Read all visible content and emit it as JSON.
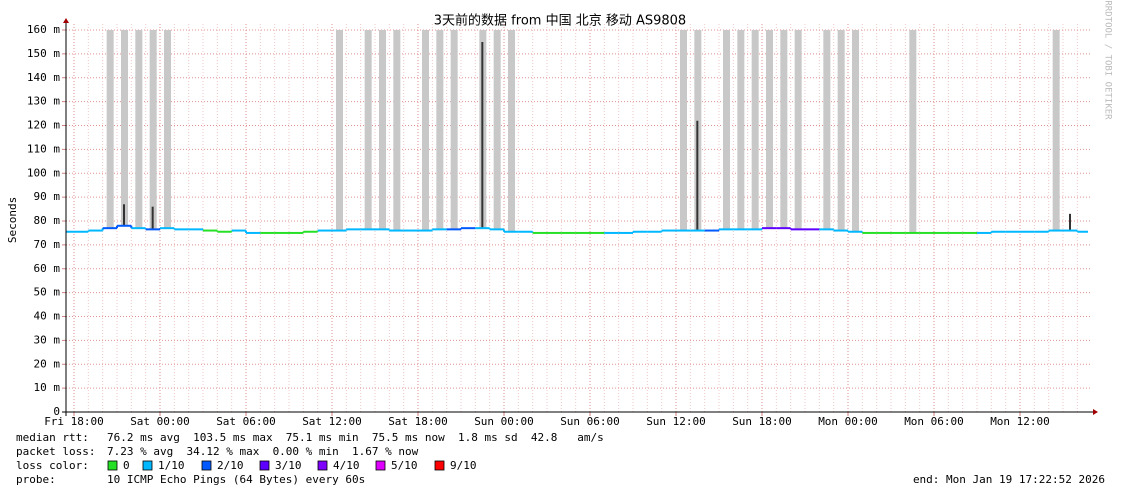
{
  "chart_data": {
    "type": "line",
    "title": "3天前的数据 from 中国 北京 移动 AS9808",
    "y_label": "Seconds",
    "watermark": "RRDTOOL / TOBI OETIKER",
    "categories": [
      "Fri 18:00",
      null,
      null,
      null,
      null,
      null,
      "Sat 00:00",
      null,
      null,
      null,
      null,
      null,
      "Sat 06:00",
      null,
      null,
      null,
      null,
      null,
      "Sat 12:00",
      null,
      null,
      null,
      null,
      null,
      "Sat 18:00",
      null,
      null,
      null,
      null,
      null,
      "Sun 00:00",
      null,
      null,
      null,
      null,
      null,
      "Sun 06:00",
      null,
      null,
      null,
      null,
      null,
      "Sun 12:00",
      null,
      null,
      null,
      null,
      null,
      "Sun 18:00",
      null,
      null,
      null,
      null,
      null,
      "Mon 00:00",
      null,
      null,
      null,
      null,
      null,
      "Mon 06:00",
      null,
      null,
      null,
      null,
      null,
      "Mon 12:00",
      null,
      null,
      null,
      null
    ],
    "values": [
      75.5,
      76,
      77,
      78,
      77,
      76.5,
      77,
      76.5,
      76.5,
      76,
      75.5,
      76,
      75,
      75,
      75,
      75,
      75.5,
      76,
      76,
      76.5,
      76.5,
      76.5,
      76,
      76,
      76,
      76.5,
      76.5,
      77,
      77,
      76.5,
      75.5,
      75.5,
      75,
      75,
      75,
      75,
      75,
      75,
      75,
      75.5,
      75.5,
      76,
      76,
      76,
      76,
      76.5,
      76.5,
      76.5,
      77,
      77,
      76.5,
      76.5,
      76.5,
      76,
      75.5,
      75,
      75,
      75,
      75,
      75,
      75,
      75,
      75,
      75,
      75.5,
      75.5,
      75.5,
      75.5,
      76,
      76,
      75.5
    ],
    "loss": [
      1,
      1,
      2,
      2,
      1,
      2,
      1,
      1,
      1,
      0,
      0,
      1,
      1,
      0,
      0,
      0,
      0,
      1,
      1,
      1,
      1,
      1,
      1,
      1,
      1,
      1,
      2,
      2,
      1,
      1,
      1,
      1,
      0,
      0,
      0,
      0,
      0,
      1,
      1,
      1,
      1,
      1,
      1,
      1,
      2,
      1,
      1,
      1,
      3,
      3,
      3,
      3,
      1,
      1,
      1,
      0,
      0,
      0,
      0,
      0,
      0,
      0,
      0,
      1,
      1,
      1,
      1,
      1,
      1,
      1,
      1
    ],
    "smoke": [
      null,
      null,
      160,
      160,
      160,
      160,
      160,
      null,
      null,
      null,
      null,
      null,
      null,
      null,
      null,
      null,
      null,
      null,
      160,
      null,
      160,
      160,
      160,
      null,
      160,
      160,
      160,
      null,
      160,
      160,
      160,
      null,
      null,
      null,
      null,
      null,
      null,
      null,
      null,
      null,
      null,
      null,
      160,
      160,
      null,
      160,
      160,
      160,
      160,
      160,
      160,
      null,
      160,
      160,
      160,
      null,
      null,
      null,
      160,
      null,
      null,
      null,
      null,
      null,
      null,
      null,
      null,
      null,
      160,
      null,
      null
    ],
    "max": [
      null,
      null,
      null,
      87,
      null,
      86,
      null,
      null,
      null,
      null,
      null,
      null,
      null,
      null,
      null,
      null,
      null,
      null,
      null,
      null,
      null,
      null,
      null,
      null,
      null,
      null,
      null,
      null,
      155,
      null,
      null,
      null,
      null,
      null,
      null,
      null,
      null,
      null,
      null,
      null,
      null,
      null,
      null,
      122,
      null,
      null,
      null,
      null,
      null,
      null,
      null,
      null,
      null,
      null,
      null,
      null,
      null,
      null,
      null,
      null,
      null,
      null,
      null,
      null,
      null,
      null,
      null,
      null,
      null,
      83,
      null
    ],
    "smoke_color": "#c8c8c8",
    "max_color": "#333333",
    "ylim": [
      0,
      160
    ],
    "yticks": [
      0,
      {
        "value": 10,
        "label": "10 m"
      },
      {
        "value": 20,
        "label": "20 m"
      },
      {
        "value": 30,
        "label": "30 m"
      },
      {
        "value": 40,
        "label": "40 m"
      },
      {
        "value": 50,
        "label": "50 m"
      },
      {
        "value": 60,
        "label": "60 m"
      },
      {
        "value": 70,
        "label": "70 m"
      },
      {
        "value": 80,
        "label": "80 m"
      },
      {
        "value": 90,
        "label": "90 m"
      },
      {
        "value": 100,
        "label": "100 m"
      },
      {
        "value": 110,
        "label": "110 m"
      },
      {
        "value": 120,
        "label": "120 m"
      },
      {
        "value": 130,
        "label": "130 m"
      },
      {
        "value": 140,
        "label": "140 m"
      },
      {
        "value": 150,
        "label": "150 m"
      },
      {
        "value": 160,
        "label": "160 m"
      }
    ],
    "grid": true,
    "stats": [
      [
        "median rtt:",
        "76.2 ms avg  103.5 ms max  75.1 ms min  75.5 ms now  1.8 ms sd  42.8   am/s"
      ],
      [
        "packet loss:",
        "7.23 % avg  34.12 % max  0.00 % min  1.67 % now"
      ]
    ],
    "loss_legend": {
      "label": "loss color:",
      "entries": [
        {
          "value": 0,
          "label": "0",
          "color": "#26e026"
        },
        {
          "value": 1,
          "label": "1/10",
          "color": "#00b8ff"
        },
        {
          "value": 2,
          "label": "2/10",
          "color": "#0059ff"
        },
        {
          "value": 3,
          "label": "3/10",
          "color": "#5e00ff"
        },
        {
          "value": 4,
          "label": "4/10",
          "color": "#7e00ff"
        },
        {
          "value": 5,
          "label": "5/10",
          "color": "#dd00ff"
        },
        {
          "value": 9,
          "label": "9/10",
          "color": "#ff0000"
        }
      ]
    },
    "probe": [
      "probe:",
      "10 ICMP Echo Pings (64 Bytes) every 60s"
    ],
    "end": "end: Mon Jan 19 17:22:52 2026"
  }
}
